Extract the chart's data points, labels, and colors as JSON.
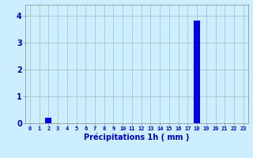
{
  "hours": [
    0,
    1,
    2,
    3,
    4,
    5,
    6,
    7,
    8,
    9,
    10,
    11,
    12,
    13,
    14,
    15,
    16,
    17,
    18,
    19,
    20,
    21,
    22,
    23
  ],
  "values": [
    0,
    0,
    0.2,
    0,
    0,
    0,
    0,
    0,
    0,
    0,
    0,
    0,
    0,
    0,
    0,
    0,
    0,
    0,
    3.8,
    0,
    0,
    0,
    0,
    0
  ],
  "bar_color": "#0000ee",
  "background_color": "#cceeff",
  "grid_color": "#aabbbb",
  "xlabel": "Précipitations 1h ( mm )",
  "xlabel_color": "#0000bb",
  "tick_color": "#0000bb",
  "ylim": [
    0,
    4.4
  ],
  "yticks": [
    0,
    1,
    2,
    3,
    4
  ],
  "xlim": [
    -0.5,
    23.5
  ],
  "bar_width": 0.7
}
